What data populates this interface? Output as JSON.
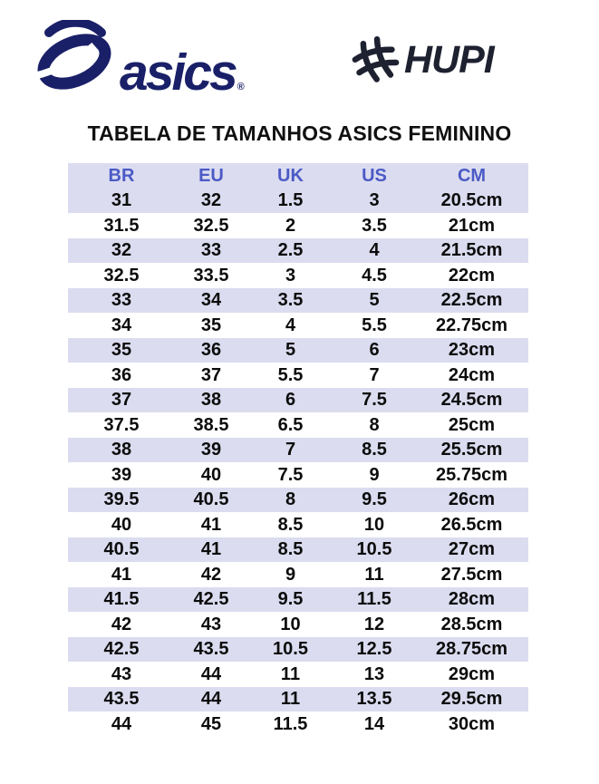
{
  "brand": {
    "asics": {
      "wordmark": "asics",
      "registered_symbol": "®",
      "color": "#1A2068"
    },
    "hupi": {
      "wordmark": "HUPI",
      "color": "#1E2130"
    }
  },
  "title": "TABELA DE TAMANHOS ASICS FEMININO",
  "table": {
    "header_text_color": "#4B5AC6",
    "stripe_color": "#DBDCEF",
    "headers": [
      "BR",
      "EU",
      "UK",
      "US",
      "CM"
    ],
    "rows": [
      [
        "31",
        "32",
        "1.5",
        "3",
        "20.5cm"
      ],
      [
        "31.5",
        "32.5",
        "2",
        "3.5",
        "21cm"
      ],
      [
        "32",
        "33",
        "2.5",
        "4",
        "21.5cm"
      ],
      [
        "32.5",
        "33.5",
        "3",
        "4.5",
        "22cm"
      ],
      [
        "33",
        "34",
        "3.5",
        "5",
        "22.5cm"
      ],
      [
        "34",
        "35",
        "4",
        "5.5",
        "22.75cm"
      ],
      [
        "35",
        "36",
        "5",
        "6",
        "23cm"
      ],
      [
        "36",
        "37",
        "5.5",
        "7",
        "24cm"
      ],
      [
        "37",
        "38",
        "6",
        "7.5",
        "24.5cm"
      ],
      [
        "37.5",
        "38.5",
        "6.5",
        "8",
        "25cm"
      ],
      [
        "38",
        "39",
        "7",
        "8.5",
        "25.5cm"
      ],
      [
        "39",
        "40",
        "7.5",
        "9",
        "25.75cm"
      ],
      [
        "39.5",
        "40.5",
        "8",
        "9.5",
        "26cm"
      ],
      [
        "40",
        "41",
        "8.5",
        "10",
        "26.5cm"
      ],
      [
        "40.5",
        "41",
        "8.5",
        "10.5",
        "27cm"
      ],
      [
        "41",
        "42",
        "9",
        "11",
        "27.5cm"
      ],
      [
        "41.5",
        "42.5",
        "9.5",
        "11.5",
        "28cm"
      ],
      [
        "42",
        "43",
        "10",
        "12",
        "28.5cm"
      ],
      [
        "42.5",
        "43.5",
        "10.5",
        "12.5",
        "28.75cm"
      ],
      [
        "43",
        "44",
        "11",
        "13",
        "29cm"
      ],
      [
        "43.5",
        "44",
        "11",
        "13.5",
        "29.5cm"
      ],
      [
        "44",
        "45",
        "11.5",
        "14",
        "30cm"
      ]
    ]
  }
}
